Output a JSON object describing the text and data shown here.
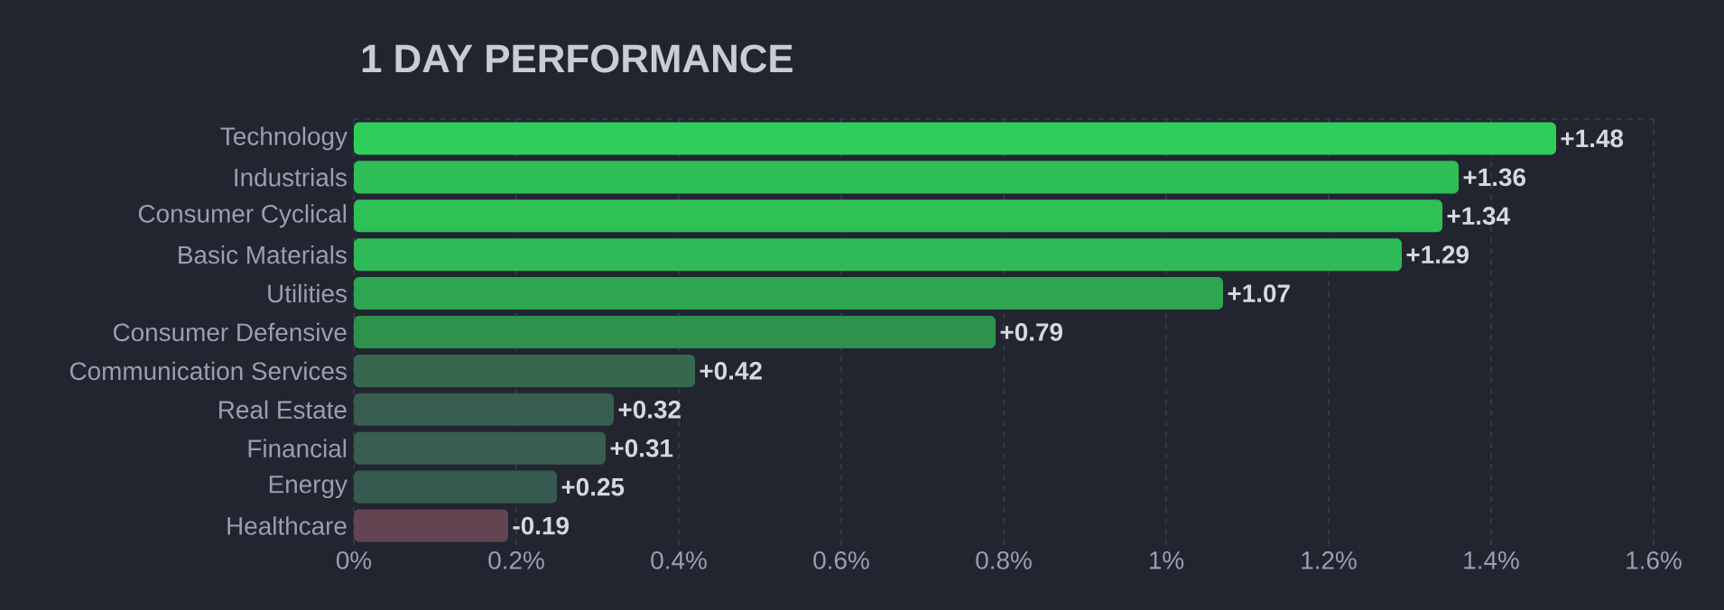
{
  "chart_data": {
    "type": "bar",
    "orientation": "horizontal",
    "title": "1 DAY PERFORMANCE",
    "categories": [
      "Technology",
      "Industrials",
      "Consumer Cyclical",
      "Basic Materials",
      "Utilities",
      "Consumer Defensive",
      "Communication Services",
      "Real Estate",
      "Financial",
      "Energy",
      "Healthcare"
    ],
    "values": [
      1.48,
      1.36,
      1.34,
      1.29,
      1.07,
      0.79,
      0.42,
      0.32,
      0.31,
      0.25,
      -0.19
    ],
    "base": [
      0,
      0,
      0,
      0,
      0,
      0,
      0,
      0,
      0,
      0,
      0.19
    ],
    "value_labels": [
      "+1.48",
      "+1.36",
      "+1.34",
      "+1.29",
      "+1.07",
      "+0.79",
      "+0.42",
      "+0.32",
      "+0.31",
      "+0.25",
      "-0.19"
    ],
    "colors": [
      "#2fcd5a",
      "#2ebf57",
      "#2fc056",
      "#2eba56",
      "#2ea551",
      "#2e924d",
      "#36684f",
      "#375e50",
      "#375e50",
      "#365a4f",
      "#634552"
    ],
    "xlim": [
      0,
      1.6
    ],
    "xticks": [
      {
        "value": 0,
        "label": "0%"
      },
      {
        "value": 0.2,
        "label": "0.2%"
      },
      {
        "value": 0.4,
        "label": "0.4%"
      },
      {
        "value": 0.6,
        "label": "0.6%"
      },
      {
        "value": 0.8,
        "label": "0.8%"
      },
      {
        "value": 1,
        "label": "1%"
      },
      {
        "value": 1.2,
        "label": "1.2%"
      },
      {
        "value": 1.4,
        "label": "1.4%"
      },
      {
        "value": 1.6,
        "label": "1.6%"
      }
    ],
    "grid": "x"
  }
}
